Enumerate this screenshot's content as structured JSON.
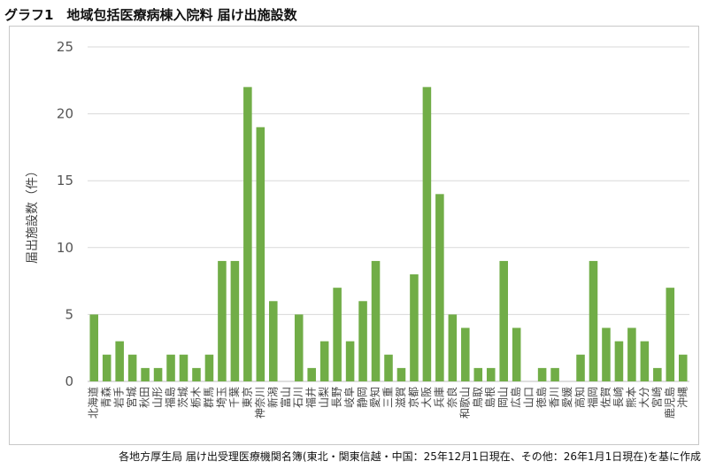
{
  "page": {
    "title": "グラフ1　地域包括医療病棟入院料 届け出施設数",
    "source": "各地方厚生局 届け出受理医療機関名簿(東北・関東信越・中国：25年12月1日現在、その他：26年1月1日現在)を基に作成"
  },
  "colors": {
    "bar": "#71AD47",
    "grid": "#D9D9D9",
    "axis": "#BFBFBF"
  },
  "chart_data": {
    "type": "bar",
    "title": "",
    "xlabel": "",
    "ylabel": "届出施設数（件）",
    "ylim": [
      0,
      25
    ],
    "yticks": [
      0,
      5,
      10,
      15,
      20,
      25
    ],
    "grid": true,
    "legend": "none",
    "categories": [
      "北海道",
      "青森",
      "岩手",
      "宮城",
      "秋田",
      "山形",
      "福島",
      "茨城",
      "栃木",
      "群馬",
      "埼玉",
      "千葉",
      "東京",
      "神奈川",
      "新潟",
      "富山",
      "石川",
      "福井",
      "山梨",
      "長野",
      "岐阜",
      "静岡",
      "愛知",
      "三重",
      "滋賀",
      "京都",
      "大阪",
      "兵庫",
      "奈良",
      "和歌山",
      "鳥取",
      "島根",
      "岡山",
      "広島",
      "山口",
      "徳島",
      "香川",
      "愛媛",
      "高知",
      "福岡",
      "佐賀",
      "長崎",
      "熊本",
      "大分",
      "宮崎",
      "鹿児島",
      "沖縄"
    ],
    "values": [
      5,
      2,
      3,
      2,
      1,
      1,
      2,
      2,
      1,
      2,
      9,
      9,
      22,
      19,
      6,
      0,
      5,
      1,
      3,
      7,
      3,
      6,
      9,
      2,
      1,
      8,
      22,
      14,
      5,
      4,
      1,
      1,
      9,
      4,
      0,
      1,
      1,
      0,
      2,
      9,
      4,
      3,
      4,
      3,
      1,
      7,
      2
    ]
  }
}
